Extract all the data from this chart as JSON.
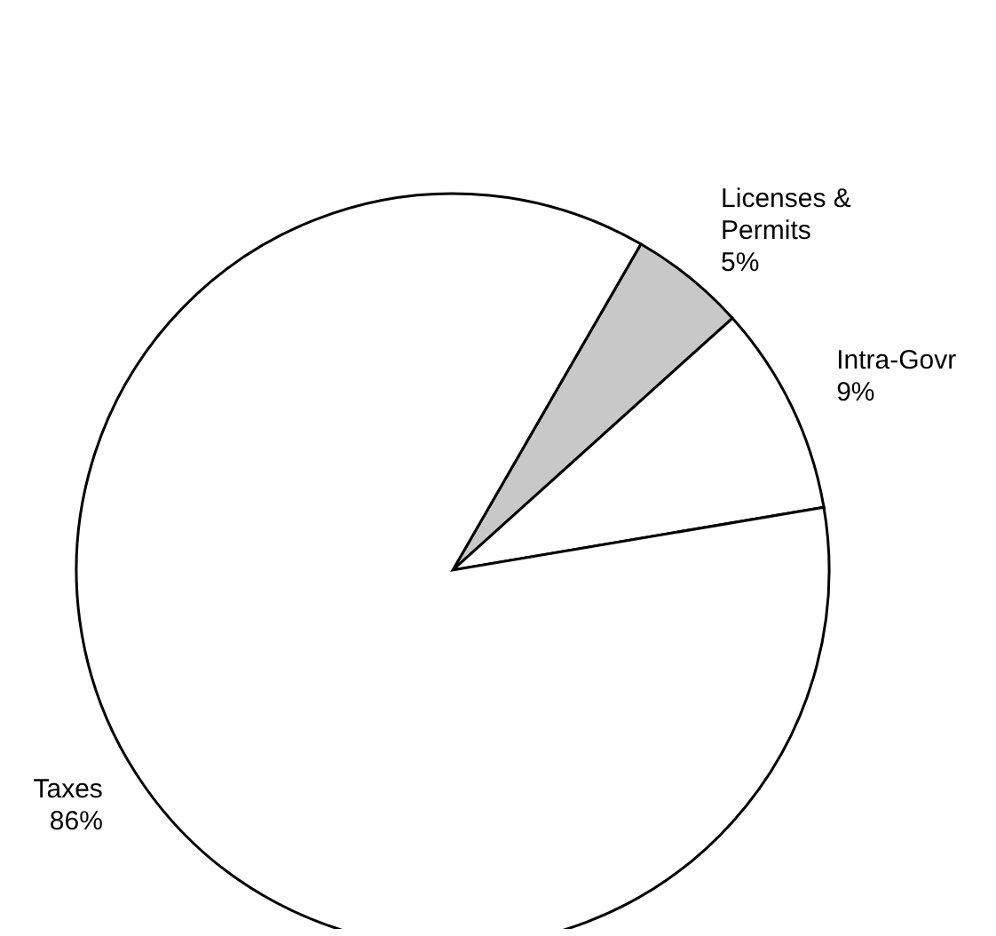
{
  "chart_data": {
    "type": "pie",
    "categories": [
      "Licenses & Permits",
      "Intra-Govr",
      "Taxes"
    ],
    "values": [
      5,
      9,
      86
    ],
    "value_labels": [
      "5%",
      "9%",
      "86%"
    ],
    "colors": [
      "#c8c8c8",
      "#ffffff",
      "#ffffff"
    ]
  }
}
